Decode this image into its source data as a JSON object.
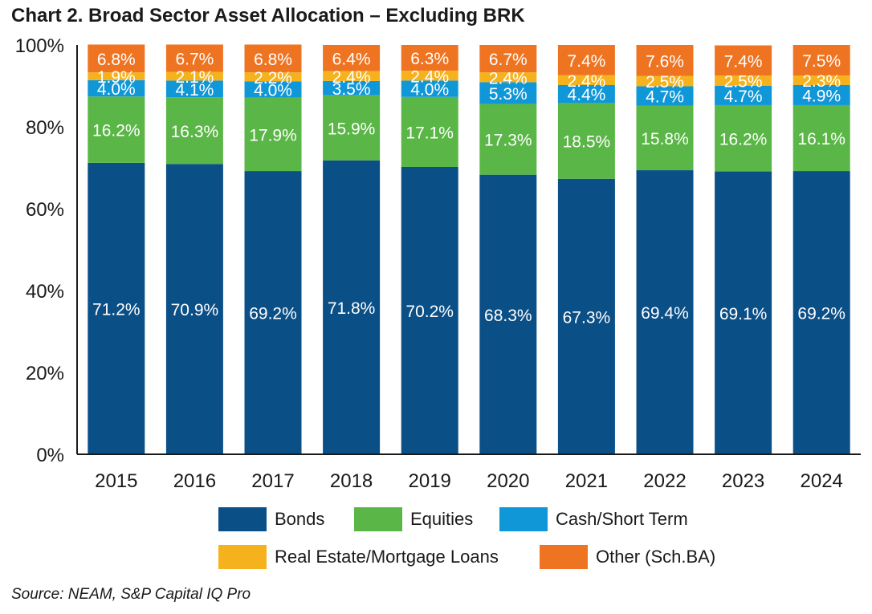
{
  "title": "Chart 2. Broad Sector Asset Allocation – Excluding BRK",
  "source": "Source: NEAM, S&P Capital IQ Pro",
  "chart_data": {
    "type": "bar",
    "stacked": true,
    "title": "Chart 2. Broad Sector Asset Allocation – Excluding BRK",
    "xlabel": "",
    "ylabel": "",
    "ylim": [
      0,
      100
    ],
    "yticks": [
      "0%",
      "20%",
      "40%",
      "60%",
      "80%",
      "100%"
    ],
    "ytick_values": [
      0,
      20,
      40,
      60,
      80,
      100
    ],
    "categories": [
      "2015",
      "2016",
      "2017",
      "2018",
      "2019",
      "2020",
      "2021",
      "2022",
      "2023",
      "2024"
    ],
    "series": [
      {
        "name": "Bonds",
        "color": "#0b4f87",
        "values": [
          71.2,
          70.9,
          69.2,
          71.8,
          70.2,
          68.3,
          67.3,
          69.4,
          69.1,
          69.2
        ],
        "labels": [
          "71.2%",
          "70.9%",
          "69.2%",
          "71.8%",
          "70.2%",
          "68.3%",
          "67.3%",
          "69.4%",
          "69.1%",
          "69.2%"
        ]
      },
      {
        "name": "Equities",
        "color": "#5ab646",
        "values": [
          16.2,
          16.3,
          17.9,
          15.9,
          17.1,
          17.3,
          18.5,
          15.8,
          16.2,
          16.1
        ],
        "labels": [
          "16.2%",
          "16.3%",
          "17.9%",
          "15.9%",
          "17.1%",
          "17.3%",
          "18.5%",
          "15.8%",
          "16.2%",
          "16.1%"
        ]
      },
      {
        "name": "Cash/Short Term",
        "color": "#1097d8",
        "values": [
          4.0,
          4.1,
          4.0,
          3.5,
          4.0,
          5.3,
          4.4,
          4.7,
          4.7,
          4.9
        ],
        "labels": [
          "4.0%",
          "4.1%",
          "4.0%",
          "3.5%",
          "4.0%",
          "5.3%",
          "4.4%",
          "4.7%",
          "4.7%",
          "4.9%"
        ]
      },
      {
        "name": "Real Estate/Mortgage Loans",
        "color": "#f5b21d",
        "values": [
          1.9,
          2.1,
          2.2,
          2.4,
          2.4,
          2.4,
          2.4,
          2.5,
          2.5,
          2.3
        ],
        "labels": [
          "1.9%",
          "2.1%",
          "2.2%",
          "2.4%",
          "2.4%",
          "2.4%",
          "2.4%",
          "2.5%",
          "2.5%",
          "2.3%"
        ]
      },
      {
        "name": "Other (Sch.BA)",
        "color": "#ef7422",
        "values": [
          6.8,
          6.7,
          6.8,
          6.4,
          6.3,
          6.7,
          7.4,
          7.6,
          7.4,
          7.5
        ],
        "labels": [
          "6.8%",
          "6.7%",
          "6.8%",
          "6.4%",
          "6.3%",
          "6.7%",
          "7.4%",
          "7.6%",
          "7.4%",
          "7.5%"
        ]
      }
    ],
    "legend": {
      "position": "bottom",
      "items": [
        "Bonds",
        "Equities",
        "Cash/Short Term",
        "Real Estate/Mortgage Loans",
        "Other (Sch.BA)"
      ]
    }
  }
}
